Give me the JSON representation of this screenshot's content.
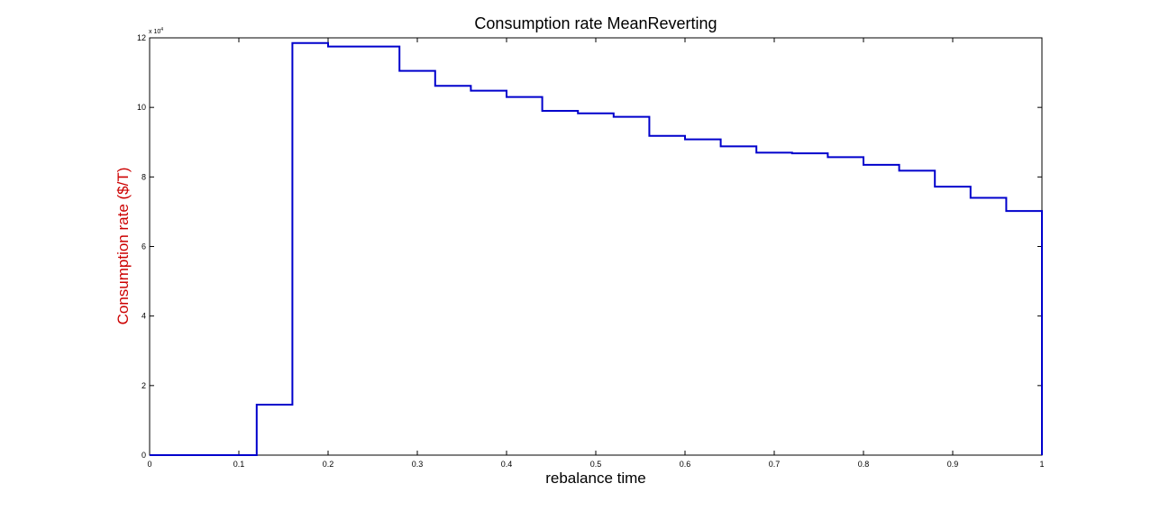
{
  "chart_data": {
    "type": "line",
    "step": "post",
    "title": "Consumption rate MeanReverting",
    "xlabel": "rebalance time",
    "ylabel": "Consumption rate ($/T)",
    "ylabel_color": "#cc0000",
    "line_color": "#0000cc",
    "y_exponent_label": "x 10",
    "y_exponent_power": "4",
    "xlim": [
      0,
      1
    ],
    "ylim": [
      0,
      12
    ],
    "y_scale_factor": 10000,
    "grid": false,
    "xticks": [
      0,
      0.1,
      0.2,
      0.3,
      0.4,
      0.5,
      0.6,
      0.7,
      0.8,
      0.9,
      1
    ],
    "xtick_labels": [
      "0",
      "0.1",
      "0.2",
      "0.3",
      "0.4",
      "0.5",
      "0.6",
      "0.7",
      "0.8",
      "0.9",
      "1"
    ],
    "yticks": [
      0,
      2,
      4,
      6,
      8,
      10,
      12
    ],
    "ytick_labels": [
      "0",
      "2",
      "4",
      "6",
      "8",
      "10",
      "12"
    ],
    "series": [
      {
        "x": [
          0,
          0.12,
          0.16,
          0.2,
          0.24,
          0.28,
          0.32,
          0.36,
          0.4,
          0.44,
          0.48,
          0.52,
          0.56,
          0.6,
          0.64,
          0.68,
          0.72,
          0.76,
          0.8,
          0.84,
          0.88,
          0.92,
          0.96,
          1
        ],
        "y": [
          0,
          1.45,
          11.85,
          11.75,
          11.75,
          11.05,
          10.62,
          10.48,
          10.3,
          9.9,
          9.83,
          9.73,
          9.18,
          9.08,
          8.88,
          8.7,
          8.68,
          8.57,
          8.35,
          8.18,
          7.72,
          7.4,
          7.02,
          0
        ]
      }
    ]
  }
}
